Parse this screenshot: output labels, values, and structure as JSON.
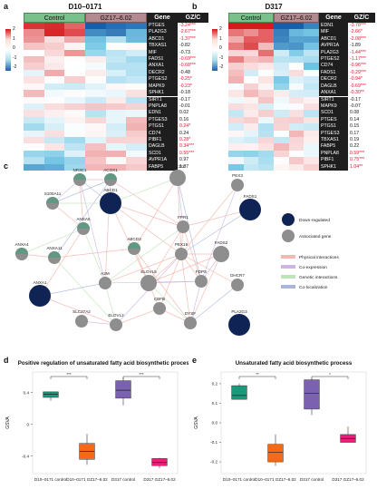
{
  "panel_a": {
    "letter": "a",
    "title": "D10–0171",
    "header_control": "Control",
    "header_treat": "GZ17–6.02",
    "header_gene": "Gene",
    "header_gzc": "GZ/C",
    "scale_ticks": [
      "2",
      "1",
      "0",
      "-1",
      "-2"
    ],
    "genes": [
      "PTGES",
      "PLA2G3",
      "ABCD1",
      "TBXAS1",
      "MIF",
      "FADS1",
      "ANXA1",
      "DECR2",
      "PTGES2",
      "MAPK9",
      "SPHK1",
      "SIRT1",
      "PNPLA8",
      "EDN1",
      "PTGES3",
      "PTGS1",
      "CD74",
      "PIBF1",
      "DAGLB",
      "SCD1",
      "AVPR1A",
      "FABP5"
    ],
    "ratios": [
      "-3.24***",
      "-2.67***",
      "-1.37***",
      "-0.82",
      "-0.73",
      "-0.69***",
      "-0.68***",
      "-0.48",
      "-0.25*",
      "-0.23*",
      "-0.18",
      "-0.17",
      "-0.01",
      "0.02",
      "0.16",
      "0.24*",
      "0.24",
      "0.28*",
      "0.34***",
      "0.55***",
      "0.97",
      "1.87"
    ]
  },
  "panel_b": {
    "letter": "b",
    "title": "D317",
    "header_control": "Control",
    "header_treat": "GZ17–6.02",
    "header_gene": "Gene",
    "header_gzc": "GZ/C",
    "scale_ticks": [
      "2",
      "1",
      "0",
      "-1",
      "-2"
    ],
    "genes": [
      "EDN1",
      "MIF",
      "ABCD1",
      "AVPR1A",
      "PLA2G3",
      "PTGES2",
      "CD74",
      "FADS1",
      "DECR2",
      "DAGLB",
      "ANXA1",
      "SIRT1",
      "MAPK9",
      "SCD1",
      "PTGES",
      "PTGS1",
      "PTGES3",
      "TBXAS1",
      "FABP5",
      "PNPLA8",
      "PIBF1",
      "SPHK1"
    ],
    "ratios": [
      "-3.78***",
      "-2.66*",
      "-2.08***",
      "-1.89",
      "-1.44***",
      "-1.17***",
      "-0.96***",
      "-0.29***",
      "-0.94*",
      "-0.69***",
      "-0.30**",
      "-0.17",
      "-0.07",
      "0.08",
      "0.14",
      "0.15",
      "0.17",
      "0.19",
      "0.22",
      "0.59***",
      "0.75***",
      "1.04**"
    ]
  },
  "panel_c": {
    "letter": "c",
    "legend": {
      "down": "Down-regulated",
      "assoc": "Associated gene",
      "physical": "Physical interactions",
      "coexp": "Co-expression",
      "genetic": "Genetic interactions",
      "coloc": "Co-localization"
    },
    "nodes": [
      {
        "id": "NR3C1",
        "type": "assoc"
      },
      {
        "id": "ACOX1",
        "type": "assoc"
      },
      {
        "id": "ABCD2",
        "type": "assoc"
      },
      {
        "id": "PEX3",
        "type": "assoc"
      },
      {
        "id": "S100A11",
        "type": "assoc"
      },
      {
        "id": "ABCD1",
        "type": "down"
      },
      {
        "id": "FADS1",
        "type": "down"
      },
      {
        "id": "ANXA5",
        "type": "assoc"
      },
      {
        "id": "FPR1",
        "type": "assoc"
      },
      {
        "id": "ANXA4",
        "type": "assoc"
      },
      {
        "id": "ANXA11",
        "type": "assoc"
      },
      {
        "id": "ABCD3",
        "type": "assoc"
      },
      {
        "id": "PEX19",
        "type": "assoc"
      },
      {
        "id": "FADS2",
        "type": "assoc"
      },
      {
        "id": "ANXA1",
        "type": "down"
      },
      {
        "id": "A2M",
        "type": "assoc"
      },
      {
        "id": "ELOVL5",
        "type": "assoc"
      },
      {
        "id": "FDPS",
        "type": "assoc"
      },
      {
        "id": "DHCR7",
        "type": "assoc"
      },
      {
        "id": "SLC27A2",
        "type": "assoc"
      },
      {
        "id": "ELOVL2",
        "type": "assoc"
      },
      {
        "id": "CBFB",
        "type": "assoc"
      },
      {
        "id": "DYSF",
        "type": "assoc"
      },
      {
        "id": "PLA2G3",
        "type": "down"
      }
    ]
  },
  "chart_data": [
    {
      "type": "box",
      "panel": "d",
      "title": "Positive regulation of unsaturated fatty acid biosynthetic process",
      "ylabel": "GSVA",
      "yticks": [
        "0.4",
        "0",
        "-0.4"
      ],
      "categories": [
        "D10–0171 control",
        "D10–0171 GZ17–6.02",
        "D317 control",
        "D317 GZ17–6.02"
      ],
      "colors": [
        "#1a9a7a",
        "#f26a1b",
        "#7b62b0",
        "#e8207c"
      ],
      "boxes": [
        {
          "min": 0.3,
          "q1": 0.34,
          "median": 0.38,
          "q3": 0.41,
          "max": 0.41
        },
        {
          "min": -0.51,
          "q1": -0.44,
          "median": -0.34,
          "q3": -0.24,
          "max": -0.12
        },
        {
          "min": 0.24,
          "q1": 0.33,
          "median": 0.43,
          "q3": 0.55,
          "max": 0.59
        },
        {
          "min": -0.55,
          "q1": -0.52,
          "median": -0.48,
          "q3": -0.43,
          "max": -0.42
        }
      ],
      "significance": [
        "***",
        "***"
      ]
    },
    {
      "type": "box",
      "panel": "e",
      "title": "Unsaturated fatty acid biosynthetic process",
      "ylabel": "GSVA",
      "yticks": [
        "0.2",
        "0.1",
        "0.0",
        "-0.1",
        "-0.2"
      ],
      "categories": [
        "D10–0171 control",
        "D10–0171 GZ17–6.02",
        "D317 control",
        "D317 GZ17–6.02"
      ],
      "colors": [
        "#1a9a7a",
        "#f26a1b",
        "#7b62b0",
        "#e8207c"
      ],
      "boxes": [
        {
          "min": 0.12,
          "q1": 0.12,
          "median": 0.14,
          "q3": 0.19,
          "max": 0.2
        },
        {
          "min": -0.22,
          "q1": -0.2,
          "median": -0.15,
          "q3": -0.11,
          "max": -0.06
        },
        {
          "min": 0.04,
          "q1": 0.07,
          "median": 0.15,
          "q3": 0.22,
          "max": 0.23
        },
        {
          "min": -0.1,
          "q1": -0.1,
          "median": -0.08,
          "q3": -0.06,
          "max": -0.02
        }
      ],
      "significance": [
        "**",
        "*"
      ]
    }
  ]
}
